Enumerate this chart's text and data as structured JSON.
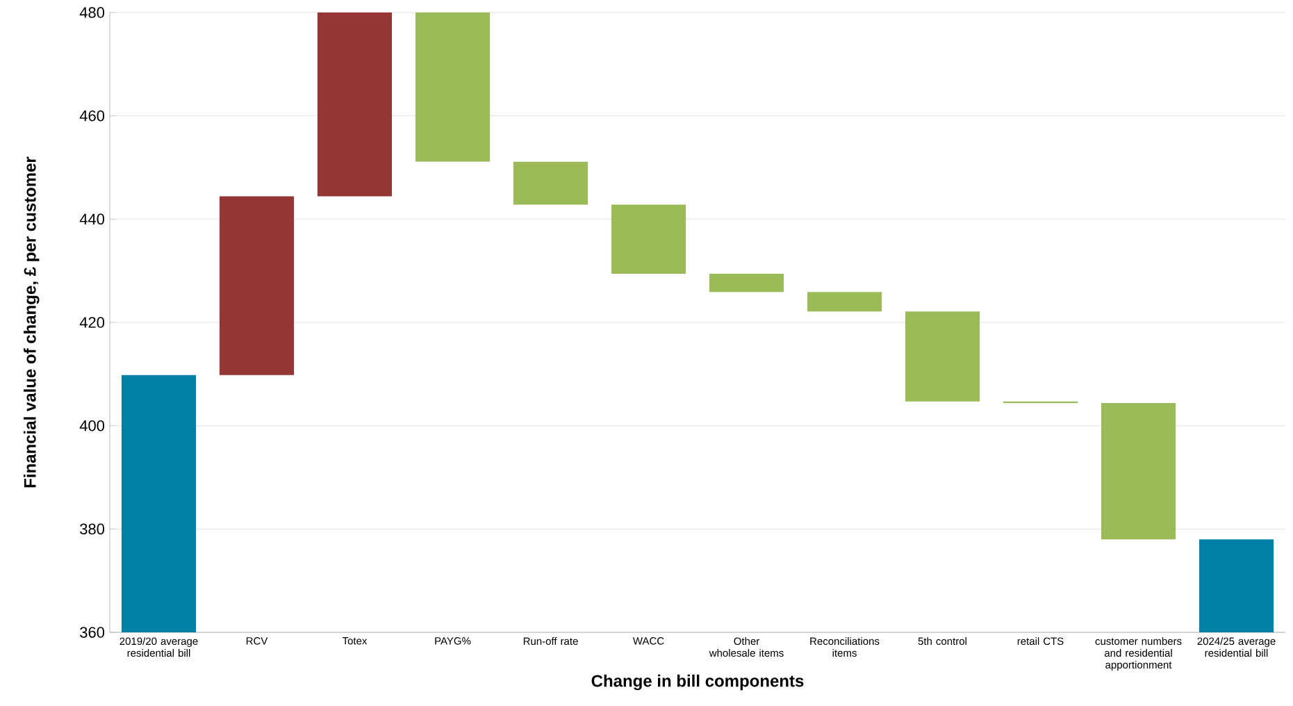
{
  "chart_data": {
    "type": "bar",
    "xlabel": "Change in bill components",
    "ylabel": "Financial value of change, £ per customer",
    "categories": [
      "2019/20 average residential bill",
      "RCV",
      "Totex",
      "PAYG%",
      "Run-off rate",
      "WACC",
      "Other wholesale items",
      "Reconciliations items",
      "5th control",
      "retail CTS",
      "customer numbers and residential apportionment",
      "2024/25 average residential bill"
    ],
    "base": [
      null,
      409.8,
      444.4,
      480,
      451.1,
      442.8,
      429.4,
      425.9,
      422.1,
      404.7,
      404.4,
      null
    ],
    "values": [
      409.8,
      34.6,
      35.6,
      -28.9,
      -8.3,
      -13.4,
      -3.5,
      -3.8,
      -17.4,
      -0.3,
      -26.4,
      378.0
    ],
    "colors": [
      "#0080a6",
      "#943634",
      "#943634",
      "#9bbb59",
      "#9bbb59",
      "#9bbb59",
      "#9bbb59",
      "#9bbb59",
      "#9bbb59",
      "#9bbb59",
      "#9bbb59",
      "#0080a6"
    ],
    "ylim": [
      360,
      480
    ],
    "yticks": [
      360,
      380,
      400,
      420,
      440,
      460,
      480
    ],
    "grid": "y"
  }
}
